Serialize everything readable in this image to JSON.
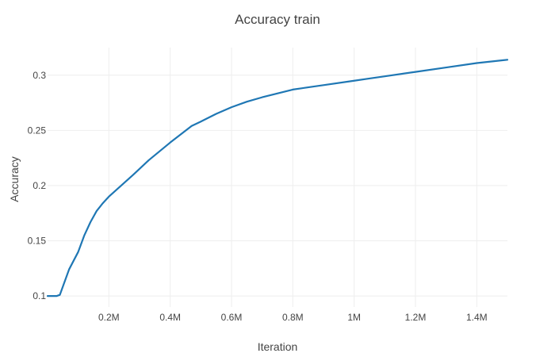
{
  "chart_data": {
    "type": "line",
    "title": "Accuracy train",
    "xlabel": "Iteration",
    "ylabel": "Accuracy",
    "xlim": [
      0,
      1500000
    ],
    "ylim": [
      0.09,
      0.325
    ],
    "grid": true,
    "legend": "none",
    "x_ticks": [
      {
        "value": 200000,
        "label": "0.2M"
      },
      {
        "value": 400000,
        "label": "0.4M"
      },
      {
        "value": 600000,
        "label": "0.6M"
      },
      {
        "value": 800000,
        "label": "0.8M"
      },
      {
        "value": 1000000,
        "label": "1M"
      },
      {
        "value": 1200000,
        "label": "1.2M"
      },
      {
        "value": 1400000,
        "label": "1.4M"
      }
    ],
    "y_ticks": [
      {
        "value": 0.1,
        "label": "0.1"
      },
      {
        "value": 0.15,
        "label": "0.15"
      },
      {
        "value": 0.2,
        "label": "0.2"
      },
      {
        "value": 0.25,
        "label": "0.25"
      },
      {
        "value": 0.3,
        "label": "0.3"
      }
    ],
    "series": [
      {
        "color": "#1f77b4",
        "x": [
          0,
          30000,
          40000,
          70000,
          100000,
          120000,
          140000,
          160000,
          180000,
          200000,
          240000,
          280000,
          330000,
          400000,
          470000,
          500000,
          550000,
          600000,
          650000,
          700000,
          800000,
          850000,
          900000,
          1000000,
          1050000,
          1100000,
          1200000,
          1300000,
          1400000,
          1500000
        ],
        "y": [
          0.1,
          0.1,
          0.101,
          0.124,
          0.14,
          0.155,
          0.167,
          0.177,
          0.184,
          0.19,
          0.2,
          0.21,
          0.223,
          0.239,
          0.254,
          0.258,
          0.265,
          0.271,
          0.276,
          0.28,
          0.287,
          0.289,
          0.291,
          0.295,
          0.297,
          0.299,
          0.303,
          0.307,
          0.311,
          0.314
        ]
      }
    ]
  }
}
